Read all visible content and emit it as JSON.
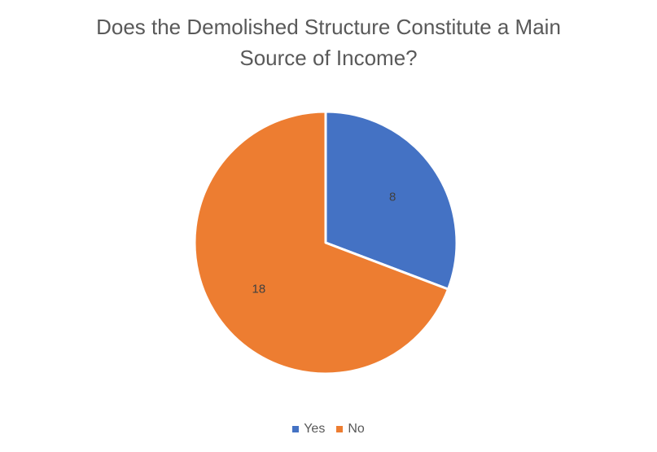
{
  "chart_data": {
    "type": "pie",
    "title": "Does the Demolished Structure Constitute a Main Source of Income?",
    "categories": [
      "Yes",
      "No"
    ],
    "values": [
      8,
      18
    ],
    "colors": [
      "#4472C4",
      "#ED7D31"
    ],
    "data_labels": [
      "8",
      "18"
    ],
    "legend_position": "bottom"
  },
  "legend": {
    "items": [
      {
        "label": "Yes",
        "color": "#4472C4"
      },
      {
        "label": "No",
        "color": "#ED7D31"
      }
    ]
  }
}
